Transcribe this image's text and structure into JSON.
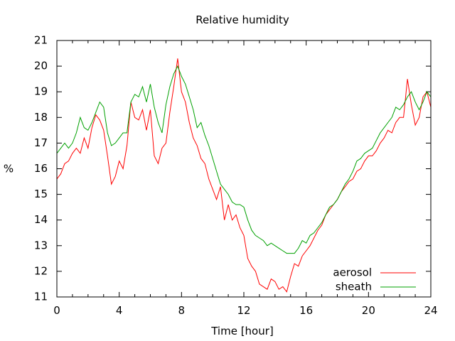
{
  "chart_data": {
    "type": "line",
    "title": "Relative humidity",
    "xlabel": "Time [hour]",
    "ylabel": "%",
    "xlim": [
      0,
      24
    ],
    "ylim": [
      11,
      21
    ],
    "xticks": [
      0,
      4,
      8,
      12,
      16,
      20,
      24
    ],
    "yticks": [
      11,
      12,
      13,
      14,
      15,
      16,
      17,
      18,
      19,
      20,
      21
    ],
    "grid": false,
    "legend_position": "bottom-right",
    "series": [
      {
        "name": "aerosol",
        "color": "#ff0000",
        "x": [
          0,
          0.25,
          0.5,
          0.75,
          1,
          1.25,
          1.5,
          1.75,
          2,
          2.25,
          2.5,
          2.75,
          3,
          3.25,
          3.5,
          3.75,
          4,
          4.25,
          4.5,
          4.75,
          5,
          5.25,
          5.5,
          5.75,
          6,
          6.25,
          6.5,
          6.75,
          7,
          7.25,
          7.5,
          7.75,
          8,
          8.25,
          8.5,
          8.75,
          9,
          9.25,
          9.5,
          9.75,
          10,
          10.25,
          10.5,
          10.75,
          11,
          11.25,
          11.5,
          11.75,
          12,
          12.25,
          12.5,
          12.75,
          13,
          13.25,
          13.5,
          13.75,
          14,
          14.25,
          14.5,
          14.75,
          15,
          15.25,
          15.5,
          15.75,
          16,
          16.25,
          16.5,
          16.75,
          17,
          17.25,
          17.5,
          17.75,
          18,
          18.25,
          18.5,
          18.75,
          19,
          19.25,
          19.5,
          19.75,
          20,
          20.25,
          20.5,
          20.75,
          21,
          21.25,
          21.5,
          21.75,
          22,
          22.25,
          22.5,
          22.75,
          23,
          23.25,
          23.5,
          23.75,
          24
        ],
        "y": [
          15.6,
          15.8,
          16.2,
          16.3,
          16.6,
          16.8,
          16.6,
          17.2,
          16.8,
          17.6,
          18.1,
          17.9,
          17.5,
          16.5,
          15.4,
          15.7,
          16.3,
          16.0,
          16.9,
          18.6,
          18.0,
          17.9,
          18.3,
          17.5,
          18.3,
          16.5,
          16.2,
          16.8,
          17.0,
          18.2,
          19.2,
          20.3,
          19.0,
          18.6,
          17.8,
          17.2,
          16.9,
          16.4,
          16.2,
          15.6,
          15.2,
          14.8,
          15.3,
          14.0,
          14.6,
          14.0,
          14.2,
          13.7,
          13.4,
          12.5,
          12.2,
          12.0,
          11.5,
          11.4,
          11.3,
          11.7,
          11.6,
          11.3,
          11.4,
          11.2,
          11.8,
          12.3,
          12.2,
          12.6,
          12.8,
          13.0,
          13.3,
          13.6,
          13.8,
          14.2,
          14.4,
          14.6,
          14.8,
          15.1,
          15.3,
          15.5,
          15.6,
          15.9,
          16.0,
          16.3,
          16.5,
          16.5,
          16.7,
          17.0,
          17.2,
          17.5,
          17.4,
          17.8,
          18.0,
          18.0,
          19.5,
          18.5,
          17.7,
          18.0,
          18.8,
          19.0,
          18.4
        ]
      },
      {
        "name": "sheath",
        "color": "#00a000",
        "x": [
          0,
          0.25,
          0.5,
          0.75,
          1,
          1.25,
          1.5,
          1.75,
          2,
          2.25,
          2.5,
          2.75,
          3,
          3.25,
          3.5,
          3.75,
          4,
          4.25,
          4.5,
          4.75,
          5,
          5.25,
          5.5,
          5.75,
          6,
          6.25,
          6.5,
          6.75,
          7,
          7.25,
          7.5,
          7.75,
          8,
          8.25,
          8.5,
          8.75,
          9,
          9.25,
          9.5,
          9.75,
          10,
          10.25,
          10.5,
          10.75,
          11,
          11.25,
          11.5,
          11.75,
          12,
          12.25,
          12.5,
          12.75,
          13,
          13.25,
          13.5,
          13.75,
          14,
          14.25,
          14.5,
          14.75,
          15,
          15.25,
          15.5,
          15.75,
          16,
          16.25,
          16.5,
          16.75,
          17,
          17.25,
          17.5,
          17.75,
          18,
          18.25,
          18.5,
          18.75,
          19,
          19.25,
          19.5,
          19.75,
          20,
          20.25,
          20.5,
          20.75,
          21,
          21.25,
          21.5,
          21.75,
          22,
          22.25,
          22.5,
          22.75,
          23,
          23.25,
          23.5,
          23.75,
          24
        ],
        "y": [
          16.6,
          16.8,
          17.0,
          16.8,
          17.0,
          17.4,
          18.0,
          17.6,
          17.5,
          17.8,
          18.2,
          18.6,
          18.4,
          17.4,
          16.9,
          17.0,
          17.2,
          17.4,
          17.4,
          18.6,
          18.9,
          18.8,
          19.2,
          18.6,
          19.3,
          18.4,
          17.8,
          17.4,
          18.5,
          19.2,
          19.7,
          20.0,
          19.6,
          19.3,
          18.8,
          18.3,
          17.6,
          17.8,
          17.3,
          16.9,
          16.4,
          15.9,
          15.4,
          15.2,
          15.0,
          14.7,
          14.6,
          14.6,
          14.5,
          14.0,
          13.6,
          13.4,
          13.3,
          13.2,
          13.0,
          13.1,
          13.0,
          12.9,
          12.8,
          12.7,
          12.7,
          12.7,
          12.9,
          13.2,
          13.1,
          13.4,
          13.5,
          13.7,
          13.9,
          14.2,
          14.5,
          14.6,
          14.8,
          15.1,
          15.4,
          15.6,
          15.9,
          16.3,
          16.4,
          16.6,
          16.7,
          16.8,
          17.1,
          17.4,
          17.6,
          17.8,
          18.0,
          18.4,
          18.3,
          18.5,
          18.8,
          19.0,
          18.6,
          18.3,
          18.6,
          19.0,
          18.8
        ]
      }
    ]
  }
}
